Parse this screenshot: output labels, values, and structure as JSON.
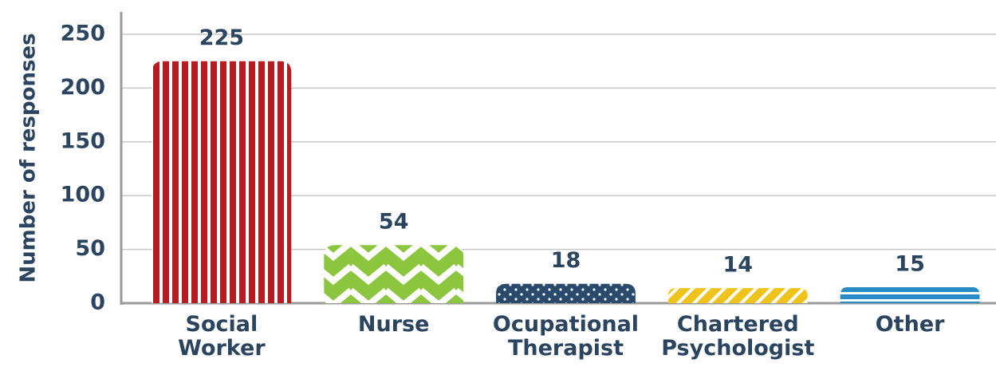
{
  "chart_data": {
    "type": "bar",
    "y_label": "Number of responses",
    "categories": [
      "Social Worker",
      "Nurse",
      "Ocupational Therapist",
      "Chartered Psychologist",
      "Other"
    ],
    "values": [
      225,
      54,
      18,
      14,
      15
    ],
    "colors": [
      "#b71c23",
      "#8cc63f",
      "#294a6c",
      "#f0c31c",
      "#2a8cc4"
    ],
    "ylim": [
      0,
      250
    ],
    "yticks": [
      0,
      50,
      100,
      150,
      200,
      250
    ],
    "grid": true
  }
}
